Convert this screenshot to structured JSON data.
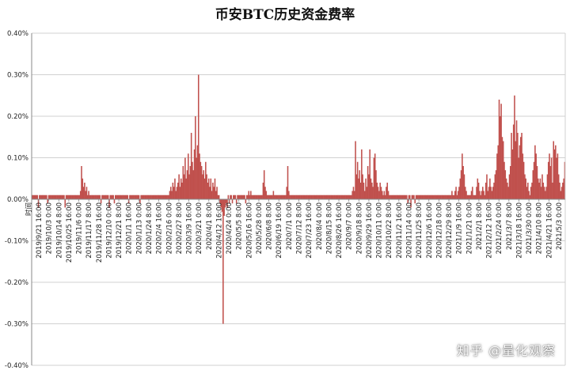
{
  "title": "币安BTC历史资金费率",
  "watermark": "知乎 @量化观察",
  "colors": {
    "bar": "#c0504d",
    "grid": "#d0d0d0",
    "axis": "#888888",
    "text": "#222222"
  },
  "chart_data": {
    "type": "bar",
    "title": "币安BTC历史资金费率",
    "xlabel": "",
    "ylabel": "",
    "ylim": [
      -0.004,
      0.004
    ],
    "y_ticks": [
      0.004,
      0.003,
      0.002,
      0.001,
      0.0,
      -0.001,
      -0.002,
      -0.003,
      -0.004
    ],
    "y_tick_labels": [
      "0.40%",
      "0.30%",
      "0.20%",
      "0.10%",
      "0.00%",
      "-0.10%",
      "-0.20%",
      "-0.30%",
      "-0.40%"
    ],
    "grid": true,
    "legend": "none",
    "x_first_label": "时间",
    "x_tick_labels": [
      "2019/9/21 16:00",
      "2019/10/3 0:00",
      "2019/10/14 8:00",
      "2019/10/25 16:00",
      "2019/11/6 0:00",
      "2019/11/17 8:00",
      "2019/11/28 16:00",
      "2019/12/10 0:00",
      "2019/12/21 8:00",
      "2020/1/1 16:00",
      "2020/1/13 0:00",
      "2020/1/24 8:00",
      "2020/2/4 16:00",
      "2020/2/16 0:00",
      "2020/2/27 8:00",
      "2020/3/9 16:00",
      "2020/3/21 0:00",
      "2020/4/1 8:00",
      "2020/4/12 16:00",
      "2020/4/24 0:00",
      "2020/5/5 8:00",
      "2020/5/16 16:00",
      "2020/5/28 0:00",
      "2020/6/8 8:00",
      "2020/6/19 16:00",
      "2020/7/1 0:00",
      "2020/7/12 8:00",
      "2020/7/23 16:00",
      "2020/8/4 0:00",
      "2020/8/15 8:00",
      "2020/8/26 16:00",
      "2020/9/7 0:00",
      "2020/9/18 8:00",
      "2020/9/29 16:00",
      "2020/10/11 0:00",
      "2020/10/22 8:00",
      "2020/11/2 16:00",
      "2020/11/14 0:00",
      "2020/11/25 8:00",
      "2020/12/6 16:00",
      "2020/12/18 0:00",
      "2020/12/29 8:00",
      "2021/1/9 16:00",
      "2021/1/21 0:00",
      "2021/2/1 8:00",
      "2021/2/12 16:00",
      "2021/2/24 0:00",
      "2021/3/7 8:00",
      "2021/3/18 16:00",
      "2021/3/30 0:00",
      "2021/4/10 8:00",
      "2021/4/21 16:00",
      "2021/5/3 0:00"
    ],
    "x_range": [
      "2019/9/10 8:00",
      "2021/5/12 0:00"
    ],
    "series": [
      {
        "values": [
          0.0001,
          0.0001,
          0.0001,
          0.0001,
          0.0001,
          0.0001,
          -0.0002,
          0.0001,
          0.0001,
          0.0001,
          0.0001,
          0.0001,
          0.0001,
          0.0001,
          0.0001,
          -0.0001,
          0.0001,
          0.0001,
          0.0001,
          0.0001,
          0.0001,
          0.0001,
          0.0001,
          0.0001,
          0.0001,
          0.0001,
          0.0001,
          0.0001,
          0.0001,
          0.0001,
          0.0001,
          0.0001,
          -0.0002,
          0.0001,
          0.0001,
          0.0001,
          0.0001,
          0.0001,
          0.0001,
          0.0001,
          0.0001,
          0.0001,
          0.0001,
          0.0001,
          0.0001,
          0.0001,
          0.0001,
          0.0002,
          0.0008,
          0.0005,
          0.0003,
          0.0004,
          0.0002,
          0.0003,
          0.0001,
          0.0002,
          0.0001,
          0.0001,
          0.0001,
          0.0001,
          0.0001,
          0.0001,
          0.0001,
          0.0001,
          0.0001,
          0.0001,
          0.0001,
          -0.0001,
          0.0001,
          0.0001,
          0.0001,
          0.0001,
          0.0001,
          0.0001,
          0.0001,
          -0.0002,
          0.0001,
          0.0001,
          0.0001,
          0.0001,
          -0.0001,
          0.0001,
          0.0001,
          0.0001,
          0.0001,
          0.0001,
          0.0001,
          0.0001,
          0.0001,
          0.0001,
          0.0001,
          0.0001,
          0.0001,
          0.0001,
          -0.0001,
          0.0001,
          0.0001,
          0.0001,
          0.0001,
          0.0001,
          0.0001,
          0.0001,
          0.0001,
          0.0001,
          0.0001,
          -0.0001,
          0.0001,
          0.0001,
          0.0001,
          0.0001,
          0.0001,
          0.0001,
          0.0001,
          0.0001,
          0.0001,
          0.0001,
          0.0001,
          0.0001,
          0.0001,
          0.0001,
          0.0001,
          0.0001,
          0.0001,
          0.0001,
          0.0001,
          0.0001,
          0.0001,
          0.0001,
          0.0001,
          0.0001,
          0.0001,
          0.0001,
          0.0001,
          0.0001,
          0.0002,
          0.0003,
          0.0002,
          0.0004,
          0.0003,
          0.0005,
          0.0002,
          0.0003,
          0.0004,
          0.0006,
          0.0003,
          0.0005,
          0.0004,
          0.0008,
          0.0006,
          0.001,
          0.0005,
          0.0007,
          0.0011,
          0.0006,
          0.0008,
          0.0016,
          0.0009,
          0.0007,
          0.0012,
          0.002,
          0.001,
          0.0013,
          0.003,
          0.0011,
          0.0009,
          0.0008,
          0.0006,
          0.0007,
          0.0005,
          0.0009,
          0.0006,
          0.0004,
          0.0005,
          0.0003,
          0.0005,
          0.0002,
          0.0004,
          0.0003,
          0.0005,
          0.0002,
          0.0003,
          0.0001,
          0.0001,
          -0.0001,
          -0.0002,
          -0.0003,
          -0.003,
          -0.0004,
          -0.0002,
          -0.0001,
          -0.0002,
          0.0001,
          -0.0001,
          0.0001,
          0.0001,
          -0.0001,
          0.0001,
          0.0001,
          0.0001,
          -0.0001,
          0.0001,
          0.0001,
          0.0001,
          0.0001,
          0.0001,
          0.0001,
          0.0001,
          0.0001,
          -0.0001,
          0.0001,
          0.0001,
          0.0002,
          0.0001,
          0.0002,
          0.0001,
          0.0001,
          0.0001,
          0.0001,
          0.0001,
          0.0001,
          0.0001,
          0.0001,
          0.0001,
          0.0001,
          0.0001,
          0.0004,
          0.0007,
          0.0003,
          0.0002,
          0.0001,
          0.0001,
          0.0001,
          0.0001,
          0.0001,
          0.0001,
          0.0002,
          0.0001,
          0.0001,
          0.0001,
          0.0001,
          0.0001,
          0.0001,
          0.0001,
          0.0001,
          0.0001,
          0.0001,
          0.0001,
          0.0001,
          0.0003,
          0.0008,
          0.0002,
          0.0001,
          0.0001,
          0.0001,
          0.0001,
          0.0001,
          0.0001,
          0.0001,
          0.0001,
          0.0001,
          0.0001,
          0.0001,
          0.0001,
          0.0001,
          0.0001,
          0.0001,
          0.0001,
          0.0001,
          0.0001,
          0.0001,
          0.0001,
          0.0001,
          0.0001,
          0.0001,
          0.0001,
          0.0001,
          0.0001,
          0.0001,
          0.0001,
          0.0001,
          0.0001,
          0.0001,
          0.0001,
          0.0001,
          0.0001,
          0.0001,
          0.0001,
          0.0001,
          0.0001,
          0.0001,
          0.0001,
          0.0001,
          0.0001,
          0.0001,
          0.0001,
          0.0001,
          0.0001,
          0.0001,
          0.0001,
          0.0001,
          0.0001,
          0.0001,
          0.0001,
          0.0001,
          0.0001,
          0.0001,
          0.0001,
          0.0001,
          0.0001,
          0.0001,
          0.0001,
          0.0001,
          0.0002,
          0.0003,
          0.0002,
          0.0014,
          0.0006,
          0.0009,
          0.0005,
          0.0007,
          0.0004,
          0.0012,
          0.0006,
          0.0004,
          0.0002,
          0.0005,
          0.0003,
          0.0008,
          0.0006,
          0.0012,
          0.0005,
          0.0004,
          0.0003,
          0.001,
          0.0011,
          0.0007,
          0.0004,
          0.0003,
          0.0002,
          0.0004,
          0.0003,
          0.0002,
          0.0001,
          0.0002,
          0.0001,
          0.0003,
          0.0004,
          0.0002,
          0.0001,
          0.0001,
          0.0001,
          0.0001,
          0.0001,
          0.0001,
          0.0001,
          0.0001,
          0.0001,
          0.0001,
          0.0001,
          0.0001,
          0.0001,
          0.0001,
          0.0001,
          0.0001,
          0.0001,
          0.0001,
          -0.0001,
          0.0001,
          0.0001,
          -0.0002,
          0.0001,
          0.0001,
          0.0001,
          -0.0001,
          0.0001,
          0.0001,
          0.0001,
          0.0001,
          0.0001,
          0.0001,
          0.0001,
          0.0001,
          0.0001,
          0.0001,
          0.0001,
          0.0001,
          0.0001,
          0.0001,
          0.0001,
          0.0001,
          0.0001,
          0.0001,
          0.0001,
          0.0001,
          0.0001,
          0.0001,
          0.0001,
          0.0001,
          0.0001,
          0.0001,
          0.0001,
          0.0001,
          0.0001,
          0.0001,
          0.0001,
          0.0001,
          0.0001,
          0.0001,
          0.0001,
          0.0002,
          0.0001,
          0.0001,
          0.0002,
          0.0003,
          0.0001,
          0.0002,
          0.0003,
          0.0005,
          0.0007,
          0.0011,
          0.0008,
          0.0006,
          0.0003,
          0.0002,
          0.0001,
          0.0001,
          0.0001,
          0.0001,
          0.0002,
          0.0003,
          0.0001,
          0.0001,
          0.0001,
          0.0003,
          0.0005,
          0.0004,
          0.0002,
          0.0001,
          0.0002,
          0.0003,
          0.0002,
          0.0001,
          0.0004,
          0.0006,
          0.0002,
          0.0003,
          0.0005,
          0.0003,
          0.0002,
          0.0003,
          0.0004,
          0.0006,
          0.0007,
          0.0011,
          0.0013,
          0.0024,
          0.002,
          0.0023,
          0.0015,
          0.0014,
          0.0009,
          0.0007,
          0.0005,
          0.0004,
          0.0003,
          0.0006,
          0.0008,
          0.0016,
          0.0012,
          0.0018,
          0.0025,
          0.0014,
          0.0019,
          0.0016,
          0.001,
          0.0013,
          0.0015,
          0.0016,
          0.0011,
          0.0009,
          0.0006,
          0.0005,
          0.0003,
          0.0004,
          0.0002,
          0.0001,
          0.0003,
          0.0004,
          0.0007,
          0.0009,
          0.0013,
          0.0011,
          0.0008,
          0.0005,
          0.0004,
          0.0005,
          0.0003,
          0.0006,
          0.0004,
          0.0003,
          0.0002,
          0.0003,
          0.0006,
          0.0009,
          0.0011,
          0.0008,
          0.001,
          0.0004,
          0.0014,
          0.0012,
          0.0013,
          0.001,
          0.0011,
          0.0006,
          0.0004,
          0.0002,
          0.0003,
          0.0004,
          0.0005,
          0.0009
        ]
      }
    ]
  }
}
